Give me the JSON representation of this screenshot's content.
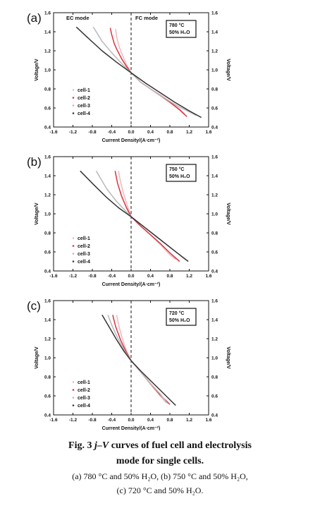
{
  "colors": {
    "cell_1": "#f2b8bd",
    "cell_2": "#d9343f",
    "cell_3": "#b9b9b9",
    "cell_4": "#333333"
  },
  "charts": {
    "shared": {
      "xlabel": "Current Density/(A·cm⁻²)",
      "ylabel_left": "Voltage/V",
      "ylabel_right": "Voltage/V",
      "x_ticks": [
        "-1.6",
        "-1.2",
        "-0.8",
        "-0.4",
        "0.0",
        "0.4",
        "0.8",
        "1.2",
        "1.6"
      ],
      "y_ticks": [
        "0.4",
        "0.6",
        "0.8",
        "1.0",
        "1.2",
        "1.4",
        "1.6"
      ],
      "legend": [
        "cell-1",
        "cell-2",
        "cell-3",
        "cell-4"
      ]
    },
    "a": {
      "tag": "(a)",
      "cond_line1": "780 °C",
      "cond_line2": "50% H₂O",
      "ec_label": "EC mode",
      "fc_label": "FC mode"
    },
    "b": {
      "tag": "(b)",
      "cond_line1": "750 °C",
      "cond_line2": "50% H₂O"
    },
    "c": {
      "tag": "(c)",
      "cond_line1": "720 °C",
      "cond_line2": "50% H₂O"
    }
  },
  "caption": {
    "fig_label": "Fig. 3",
    "jv": "j–V",
    "title_rest": "curves of fuel cell and electrolysis",
    "line2": "mode for single cells.",
    "line3": "(a) 780 °C and 50% H₂O, (b) 750 °C and 50% H₂O,",
    "line4": "(c) 720 °C and 50% H₂O."
  },
  "chart_data": [
    {
      "type": "line",
      "panel": "(a)",
      "xlabel": "Current Density/(A·cm⁻²)",
      "ylabel": "Voltage/V",
      "xlim": [
        -1.6,
        1.6
      ],
      "ylim": [
        0.4,
        1.6
      ],
      "annotations": [
        "EC mode",
        "FC mode",
        "780 °C",
        "50% H₂O"
      ],
      "series": [
        {
          "name": "cell-1",
          "x": [
            -0.32,
            -0.3,
            -0.25,
            -0.2,
            -0.1,
            0.0,
            0.2,
            0.4,
            0.6,
            0.8,
            1.0,
            1.1
          ],
          "y": [
            1.43,
            1.35,
            1.25,
            1.18,
            1.06,
            0.97,
            0.87,
            0.8,
            0.74,
            0.67,
            0.59,
            0.54
          ]
        },
        {
          "name": "cell-2",
          "x": [
            -0.43,
            -0.4,
            -0.35,
            -0.3,
            -0.2,
            -0.1,
            0.0,
            0.2,
            0.4,
            0.6,
            0.8,
            1.0,
            1.15
          ],
          "y": [
            1.44,
            1.37,
            1.28,
            1.22,
            1.12,
            1.04,
            0.97,
            0.87,
            0.8,
            0.73,
            0.66,
            0.58,
            0.51
          ]
        },
        {
          "name": "cell-3",
          "x": [
            -0.78,
            -0.6,
            -0.4,
            -0.2,
            0.0,
            0.2,
            0.4,
            0.6,
            0.8,
            1.0,
            1.2,
            1.35
          ],
          "y": [
            1.45,
            1.3,
            1.18,
            1.07,
            0.97,
            0.87,
            0.8,
            0.73,
            0.67,
            0.61,
            0.56,
            0.52
          ]
        },
        {
          "name": "cell-4",
          "x": [
            -1.13,
            -0.9,
            -0.6,
            -0.3,
            0.0,
            0.3,
            0.6,
            0.9,
            1.2,
            1.45
          ],
          "y": [
            1.45,
            1.34,
            1.2,
            1.08,
            0.97,
            0.86,
            0.76,
            0.66,
            0.57,
            0.5
          ]
        }
      ]
    },
    {
      "type": "line",
      "panel": "(b)",
      "xlabel": "Current Density/(A·cm⁻²)",
      "ylabel": "Voltage/V",
      "xlim": [
        -1.6,
        1.6
      ],
      "ylim": [
        0.4,
        1.6
      ],
      "annotations": [
        "750 °C",
        "50% H₂O"
      ],
      "series": [
        {
          "name": "cell-1",
          "x": [
            -0.26,
            -0.22,
            -0.16,
            -0.08,
            0.0,
            0.2,
            0.4,
            0.6,
            0.8,
            0.92
          ],
          "y": [
            1.45,
            1.34,
            1.22,
            1.09,
            0.97,
            0.87,
            0.78,
            0.68,
            0.57,
            0.52
          ]
        },
        {
          "name": "cell-2",
          "x": [
            -0.33,
            -0.28,
            -0.2,
            -0.1,
            0.0,
            0.2,
            0.4,
            0.6,
            0.8,
            1.0
          ],
          "y": [
            1.45,
            1.32,
            1.19,
            1.07,
            0.97,
            0.87,
            0.78,
            0.69,
            0.59,
            0.5
          ]
        },
        {
          "name": "cell-3",
          "x": [
            -0.72,
            -0.5,
            -0.3,
            -0.15,
            0.0,
            0.3,
            0.6,
            0.9,
            1.12
          ],
          "y": [
            1.45,
            1.26,
            1.13,
            1.05,
            0.97,
            0.85,
            0.73,
            0.61,
            0.52
          ]
        },
        {
          "name": "cell-4",
          "x": [
            -1.05,
            -0.8,
            -0.5,
            -0.25,
            0.0,
            0.3,
            0.6,
            0.9,
            1.18
          ],
          "y": [
            1.45,
            1.32,
            1.17,
            1.06,
            0.97,
            0.85,
            0.73,
            0.61,
            0.5
          ]
        }
      ]
    },
    {
      "type": "line",
      "panel": "(c)",
      "xlabel": "Current Density/(A·cm⁻²)",
      "ylabel": "Voltage/V",
      "xlim": [
        -1.6,
        1.6
      ],
      "ylim": [
        0.4,
        1.6
      ],
      "annotations": [
        "720 °C",
        "50% H₂O"
      ],
      "series": [
        {
          "name": "cell-1",
          "x": [
            -0.3,
            -0.25,
            -0.18,
            -0.1,
            0.0,
            0.2,
            0.4,
            0.6,
            0.72
          ],
          "y": [
            1.45,
            1.33,
            1.2,
            1.08,
            0.97,
            0.85,
            0.72,
            0.6,
            0.53
          ]
        },
        {
          "name": "cell-2",
          "x": [
            -0.38,
            -0.32,
            -0.22,
            -0.1,
            0.0,
            0.2,
            0.4,
            0.6,
            0.8
          ],
          "y": [
            1.45,
            1.33,
            1.19,
            1.06,
            0.97,
            0.85,
            0.73,
            0.61,
            0.51
          ]
        },
        {
          "name": "cell-3",
          "x": [
            -0.48,
            -0.38,
            -0.25,
            -0.12,
            0.0,
            0.2,
            0.4,
            0.6,
            0.75
          ],
          "y": [
            1.45,
            1.32,
            1.18,
            1.06,
            0.97,
            0.85,
            0.73,
            0.62,
            0.52
          ]
        },
        {
          "name": "cell-4",
          "x": [
            -0.6,
            -0.45,
            -0.3,
            -0.15,
            0.0,
            0.2,
            0.4,
            0.6,
            0.8,
            0.92
          ],
          "y": [
            1.45,
            1.32,
            1.19,
            1.07,
            0.97,
            0.86,
            0.76,
            0.66,
            0.56,
            0.5
          ]
        }
      ]
    }
  ]
}
